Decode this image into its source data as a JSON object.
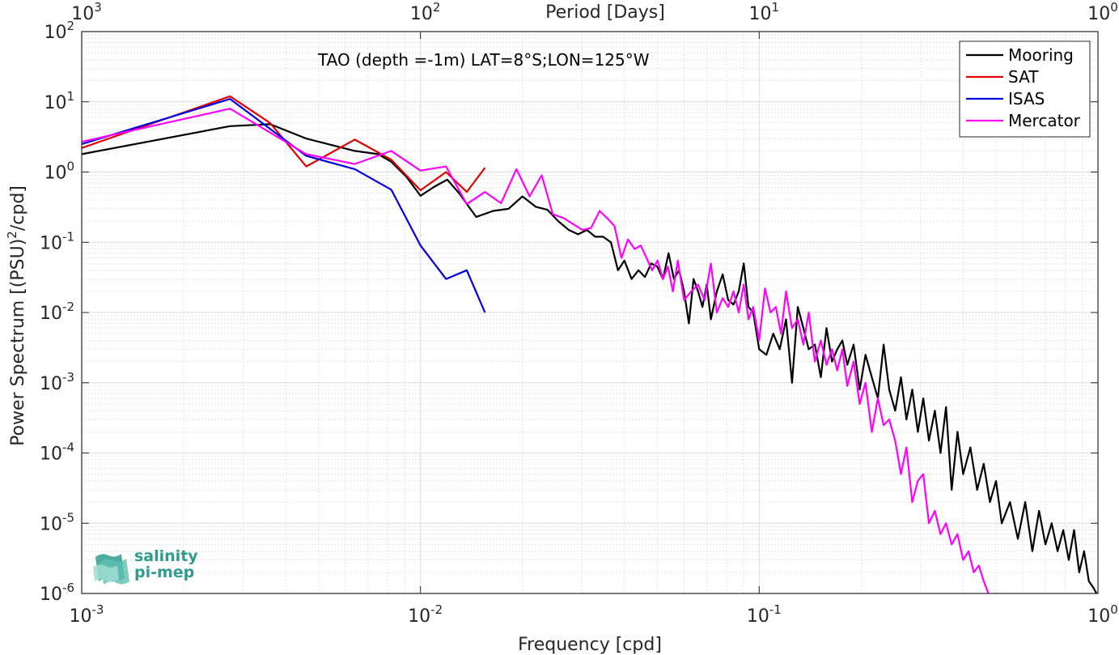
{
  "chart_data": {
    "type": "line",
    "xscale": "log",
    "yscale": "log",
    "xlim": [
      0.001,
      1
    ],
    "ylim": [
      1e-06,
      100
    ],
    "grid": true,
    "minor_grid": true,
    "legend_position": "top-right",
    "xlabel": "Frequency [cpd]",
    "ylabel_main": "Power Spectrum [(PSU)",
    "ylabel_sup": "2",
    "ylabel_tail": "/cpd]",
    "top_xlabel": "Period [Days]",
    "annotation": "TAO (depth =-1m) LAT=8°S;LON=125°W",
    "x_tick_labels": [
      {
        "value": 0.001,
        "base": "10",
        "exp": "-3"
      },
      {
        "value": 0.01,
        "base": "10",
        "exp": "-2"
      },
      {
        "value": 0.1,
        "base": "10",
        "exp": "-1"
      },
      {
        "value": 1,
        "base": "10",
        "exp": "0"
      }
    ],
    "y_tick_labels": [
      {
        "value": 1e-06,
        "base": "10",
        "exp": "-6"
      },
      {
        "value": 1e-05,
        "base": "10",
        "exp": "-5"
      },
      {
        "value": 0.0001,
        "base": "10",
        "exp": "-4"
      },
      {
        "value": 0.001,
        "base": "10",
        "exp": "-3"
      },
      {
        "value": 0.01,
        "base": "10",
        "exp": "-2"
      },
      {
        "value": 0.1,
        "base": "10",
        "exp": "-1"
      },
      {
        "value": 1,
        "base": "10",
        "exp": "0"
      },
      {
        "value": 10,
        "base": "10",
        "exp": "1"
      },
      {
        "value": 100,
        "base": "10",
        "exp": "2"
      }
    ],
    "top_tick_labels": [
      {
        "freq": 0.001,
        "base": "10",
        "exp": "3"
      },
      {
        "freq": 0.01,
        "base": "10",
        "exp": "2"
      },
      {
        "freq": 0.1,
        "base": "10",
        "exp": "1"
      },
      {
        "freq": 1,
        "base": "10",
        "exp": "0"
      }
    ],
    "series": [
      {
        "name": "Mooring",
        "color": "#000000",
        "x": [
          0.001,
          0.00274,
          0.0036,
          0.0046,
          0.0064,
          0.0075,
          0.0082,
          0.0091,
          0.01,
          0.011,
          0.012,
          0.013,
          0.0146,
          0.0164,
          0.0182,
          0.02,
          0.0219,
          0.0237,
          0.0255,
          0.0274,
          0.0292,
          0.031,
          0.0328,
          0.0346,
          0.0365,
          0.0383,
          0.04,
          0.042,
          0.044,
          0.046,
          0.048,
          0.05,
          0.052,
          0.054,
          0.056,
          0.058,
          0.06,
          0.062,
          0.064,
          0.066,
          0.068,
          0.07,
          0.072,
          0.075,
          0.078,
          0.081,
          0.084,
          0.087,
          0.09,
          0.093,
          0.096,
          0.1,
          0.105,
          0.11,
          0.115,
          0.12,
          0.125,
          0.13,
          0.135,
          0.14,
          0.146,
          0.152,
          0.158,
          0.164,
          0.17,
          0.176,
          0.182,
          0.19,
          0.198,
          0.206,
          0.215,
          0.224,
          0.233,
          0.242,
          0.252,
          0.262,
          0.272,
          0.283,
          0.294,
          0.305,
          0.317,
          0.33,
          0.343,
          0.356,
          0.37,
          0.385,
          0.4,
          0.42,
          0.44,
          0.46,
          0.48,
          0.5,
          0.52,
          0.55,
          0.58,
          0.61,
          0.64,
          0.67,
          0.7,
          0.73,
          0.76,
          0.79,
          0.82,
          0.85,
          0.88,
          0.91,
          0.94,
          0.97,
          0.99
        ],
        "y": [
          1.8,
          4.5,
          4.8,
          3.0,
          2.0,
          1.8,
          1.4,
          0.85,
          0.46,
          0.62,
          0.78,
          0.5,
          0.23,
          0.28,
          0.3,
          0.45,
          0.32,
          0.29,
          0.2,
          0.15,
          0.13,
          0.15,
          0.12,
          0.12,
          0.1,
          0.04,
          0.055,
          0.03,
          0.04,
          0.032,
          0.05,
          0.045,
          0.03,
          0.07,
          0.03,
          0.04,
          0.02,
          0.007,
          0.03,
          0.02,
          0.012,
          0.025,
          0.008,
          0.02,
          0.035,
          0.015,
          0.013,
          0.02,
          0.05,
          0.012,
          0.01,
          0.003,
          0.0025,
          0.005,
          0.003,
          0.008,
          0.001,
          0.012,
          0.006,
          0.003,
          0.0035,
          0.0012,
          0.006,
          0.002,
          0.003,
          0.004,
          0.0018,
          0.0035,
          0.0008,
          0.0025,
          0.0012,
          0.0006,
          0.0035,
          0.0008,
          0.0004,
          0.0012,
          0.0003,
          0.0008,
          0.0002,
          0.0006,
          0.00015,
          0.0004,
          0.0001,
          0.00045,
          3e-05,
          0.0002,
          5e-05,
          0.00012,
          3e-05,
          7e-05,
          2e-05,
          4e-05,
          1e-05,
          2e-05,
          6e-06,
          2e-05,
          4e-06,
          1.5e-05,
          5e-06,
          1e-05,
          4e-06,
          8e-06,
          3e-06,
          8e-06,
          2e-06,
          4e-06,
          1.5e-06,
          1.2e-06,
          1e-06
        ]
      },
      {
        "name": "SAT",
        "color": "#e00000",
        "x": [
          0.001,
          0.00274,
          0.0036,
          0.0046,
          0.0064,
          0.0082,
          0.01,
          0.0119,
          0.0137,
          0.0155
        ],
        "y": [
          2.2,
          12.0,
          5.0,
          1.2,
          2.9,
          1.5,
          0.55,
          1.0,
          0.52,
          1.15
        ]
      },
      {
        "name": "ISAS",
        "color": "#0000e0",
        "x": [
          0.001,
          0.00274,
          0.0046,
          0.0064,
          0.0082,
          0.01,
          0.0119,
          0.0137,
          0.0155
        ],
        "y": [
          2.5,
          11.0,
          1.7,
          1.1,
          0.56,
          0.09,
          0.03,
          0.04,
          0.01
        ]
      },
      {
        "name": "Mercator",
        "color": "#ff00ff",
        "x": [
          0.001,
          0.00274,
          0.0046,
          0.0064,
          0.0082,
          0.01,
          0.0119,
          0.0137,
          0.0155,
          0.0173,
          0.0192,
          0.021,
          0.0228,
          0.0246,
          0.0265,
          0.0283,
          0.0301,
          0.0319,
          0.0338,
          0.0356,
          0.0374,
          0.0392,
          0.041,
          0.0429,
          0.0447,
          0.0465,
          0.0483,
          0.0501,
          0.052,
          0.0538,
          0.0556,
          0.0575,
          0.06,
          0.063,
          0.066,
          0.069,
          0.072,
          0.075,
          0.078,
          0.081,
          0.084,
          0.087,
          0.09,
          0.093,
          0.096,
          0.1,
          0.104,
          0.108,
          0.112,
          0.116,
          0.12,
          0.125,
          0.13,
          0.135,
          0.14,
          0.146,
          0.152,
          0.158,
          0.164,
          0.17,
          0.176,
          0.182,
          0.19,
          0.198,
          0.206,
          0.215,
          0.224,
          0.233,
          0.242,
          0.252,
          0.262,
          0.272,
          0.283,
          0.294,
          0.305,
          0.317,
          0.33,
          0.343,
          0.356,
          0.37,
          0.385,
          0.4,
          0.415,
          0.43,
          0.445,
          0.46,
          0.475
        ],
        "y": [
          2.7,
          8.0,
          1.8,
          1.3,
          2.0,
          1.05,
          1.2,
          0.35,
          0.52,
          0.36,
          1.1,
          0.45,
          0.9,
          0.25,
          0.22,
          0.18,
          0.15,
          0.16,
          0.28,
          0.22,
          0.17,
          0.06,
          0.11,
          0.08,
          0.09,
          0.06,
          0.04,
          0.055,
          0.03,
          0.045,
          0.02,
          0.055,
          0.015,
          0.02,
          0.025,
          0.015,
          0.05,
          0.01,
          0.016,
          0.012,
          0.02,
          0.01,
          0.025,
          0.008,
          0.012,
          0.004,
          0.022,
          0.01,
          0.012,
          0.005,
          0.02,
          0.006,
          0.008,
          0.0035,
          0.01,
          0.002,
          0.004,
          0.0018,
          0.003,
          0.0015,
          0.003,
          0.0009,
          0.002,
          0.0005,
          0.001,
          0.0002,
          0.0006,
          0.00025,
          0.0003,
          0.00015,
          5e-05,
          0.00012,
          2e-05,
          4e-05,
          5e-05,
          1e-05,
          1.5e-05,
          7e-06,
          1e-05,
          5e-06,
          7e-06,
          3e-06,
          4e-06,
          2e-06,
          2.5e-06,
          1.5e-06,
          1e-06
        ]
      }
    ],
    "logo": {
      "line1": "salinity",
      "line2": "pi-mep",
      "color": "#2e9c8f"
    }
  }
}
